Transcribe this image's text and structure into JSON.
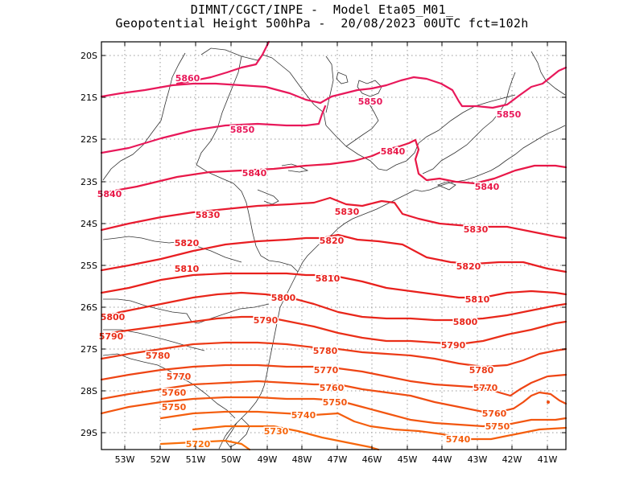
{
  "header": {
    "line1": "DIMNT/CGCT/INPE -  Model Eta05_M01_",
    "line2": "Geopotential Height 500hPa -  20/08/2023 00UTC fct=102h"
  },
  "axes": {
    "lat_labels": [
      "20S",
      "21S",
      "22S",
      "23S",
      "24S",
      "25S",
      "26S",
      "27S",
      "28S",
      "29S"
    ],
    "lon_labels": [
      "53W",
      "52W",
      "51W",
      "50W",
      "49W",
      "48W",
      "47W",
      "46W",
      "45W",
      "44W",
      "43W",
      "42W",
      "41W"
    ]
  },
  "colors": {
    "c5860": "#e8185a",
    "c5850": "#e8185a",
    "c5840": "#e81848",
    "c5830": "#e81b30",
    "c5820": "#e81e22",
    "c5810": "#e8201c",
    "c5800": "#e8261a",
    "c5790": "#ea2f18",
    "c5780": "#ec3a16",
    "c5770": "#ee4414",
    "c5760": "#f04d12",
    "c5750": "#f25610",
    "c5740": "#f45e0e",
    "c5730": "#f6660c",
    "c5720": "#f86e0a",
    "coast": "#333333"
  },
  "contour_labels": [
    {
      "text": "5860",
      "color": "c5860"
    },
    {
      "text": "5850",
      "color": "c5850"
    },
    {
      "text": "5850",
      "color": "c5850"
    },
    {
      "text": "5850",
      "color": "c5850"
    },
    {
      "text": "5840",
      "color": "c5840"
    },
    {
      "text": "5840",
      "color": "c5840"
    },
    {
      "text": "5840",
      "color": "c5840"
    },
    {
      "text": "5840",
      "color": "c5840"
    },
    {
      "text": "5830",
      "color": "c5830"
    },
    {
      "text": "5830",
      "color": "c5830"
    },
    {
      "text": "5830",
      "color": "c5830"
    },
    {
      "text": "5820",
      "color": "c5820"
    },
    {
      "text": "5820",
      "color": "c5820"
    },
    {
      "text": "5820",
      "color": "c5820"
    },
    {
      "text": "5810",
      "color": "c5810"
    },
    {
      "text": "5810",
      "color": "c5810"
    },
    {
      "text": "5810",
      "color": "c5810"
    },
    {
      "text": "5800",
      "color": "c5800"
    },
    {
      "text": "5800",
      "color": "c5800"
    },
    {
      "text": "5800",
      "color": "c5800"
    },
    {
      "text": "5790",
      "color": "c5790"
    },
    {
      "text": "5790",
      "color": "c5790"
    },
    {
      "text": "5790",
      "color": "c5790"
    },
    {
      "text": "5780",
      "color": "c5780"
    },
    {
      "text": "5780",
      "color": "c5780"
    },
    {
      "text": "5780",
      "color": "c5780"
    },
    {
      "text": "5770",
      "color": "c5770"
    },
    {
      "text": "5770",
      "color": "c5770"
    },
    {
      "text": "5770",
      "color": "c5770"
    },
    {
      "text": "5760",
      "color": "c5760"
    },
    {
      "text": "5760",
      "color": "c5760"
    },
    {
      "text": "5760",
      "color": "c5760"
    },
    {
      "text": "5750",
      "color": "c5750"
    },
    {
      "text": "5750",
      "color": "c5750"
    },
    {
      "text": "5750",
      "color": "c5750"
    },
    {
      "text": "5740",
      "color": "c5740"
    },
    {
      "text": "5740",
      "color": "c5740"
    },
    {
      "text": "5730",
      "color": "c5730"
    },
    {
      "text": "5720",
      "color": "c5720"
    }
  ]
}
